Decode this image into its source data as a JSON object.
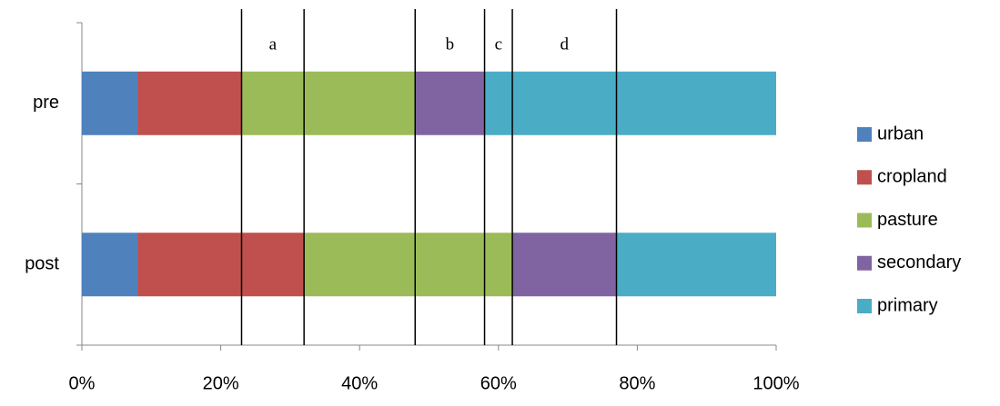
{
  "chart_data": {
    "type": "stacked_barh",
    "categories": [
      "pre",
      "post"
    ],
    "series": [
      {
        "name": "urban",
        "color": "#4f81bd",
        "values": [
          8,
          8
        ]
      },
      {
        "name": "cropland",
        "color": "#c0504d",
        "values": [
          15,
          24
        ]
      },
      {
        "name": "pasture",
        "color": "#9bbb59",
        "values": [
          25,
          30
        ]
      },
      {
        "name": "secondary",
        "color": "#8064a2",
        "values": [
          10,
          15
        ]
      },
      {
        "name": "primary",
        "color": "#4bacc6",
        "values": [
          42,
          23
        ]
      }
    ],
    "xlim": [
      0,
      100
    ],
    "xticks": [
      {
        "value": 0,
        "label": "0%"
      },
      {
        "value": 20,
        "label": "20%"
      },
      {
        "value": 40,
        "label": "40%"
      },
      {
        "value": 60,
        "label": "60%"
      },
      {
        "value": 80,
        "label": "80%"
      },
      {
        "value": 100,
        "label": "100%"
      }
    ],
    "annotations": [
      {
        "label": "a",
        "from": 23,
        "to": 32
      },
      {
        "label": "b",
        "from": 48,
        "to": 58
      },
      {
        "label": "c",
        "from": 58,
        "to": 62
      },
      {
        "label": "d",
        "from": 62,
        "to": 77
      }
    ],
    "legend": "right"
  }
}
